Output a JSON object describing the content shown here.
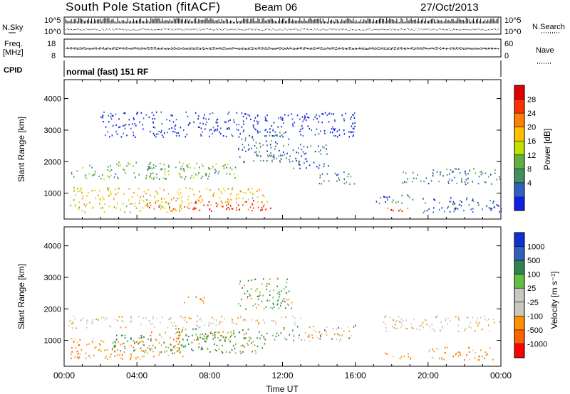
{
  "header": {
    "station": "South Pole Station (fitACF)",
    "beam": "Beam 06",
    "date": "27/Oct/2013"
  },
  "top_panels": {
    "nsky_label": "N.Sky",
    "nsearch_label": "N.Search",
    "noise_ticks": [
      "10^5",
      "10^0"
    ],
    "freq_label_line1": "Freq.",
    "freq_label_line2": "[MHz]",
    "freq_ticks": [
      "18",
      "8"
    ],
    "nave_label": "Nave",
    "nave_ticks": [
      "60",
      "0"
    ],
    "cpid_label": "CPID",
    "cpid_text": "normal (fast) 151 RF"
  },
  "chart_data": [
    {
      "type": "heatmap",
      "name": "power-panel",
      "xlabel": "Time UT",
      "ylabel": "Slant Range [km]",
      "xlim": [
        0,
        24
      ],
      "ylim": [
        180,
        4600
      ],
      "yticks": [
        "1000",
        "2000",
        "3000",
        "4000"
      ],
      "colorbar": {
        "label": "Power [dB]",
        "ticks": [
          "4",
          "8",
          "12",
          "16",
          "20",
          "24",
          "28"
        ],
        "colors": [
          "#1020e0",
          "#3060c0",
          "#409060",
          "#60b040",
          "#c0e000",
          "#ffc000",
          "#ff8000",
          "#ff3000",
          "#e00000"
        ]
      },
      "regions": [
        {
          "t0": 0.3,
          "t1": 9.5,
          "r0": 1450,
          "r1": 1900,
          "level": 0.35
        },
        {
          "t0": 2.5,
          "t1": 9.0,
          "r0": 1800,
          "r1": 2000,
          "level": 0.45
        },
        {
          "t0": 0.5,
          "t1": 11.0,
          "r0": 700,
          "r1": 1200,
          "level": 0.6
        },
        {
          "t0": 4.5,
          "t1": 11.2,
          "r0": 500,
          "r1": 800,
          "level": 0.8
        },
        {
          "t0": 7.0,
          "t1": 11.5,
          "r0": 450,
          "r1": 650,
          "level": 0.95
        },
        {
          "t0": 0.3,
          "t1": 6.5,
          "r0": 400,
          "r1": 700,
          "level": 0.55
        },
        {
          "t0": 9.5,
          "t1": 12.5,
          "r0": 2000,
          "r1": 3000,
          "level": 0.2
        },
        {
          "t0": 12.5,
          "t1": 14.5,
          "r0": 1800,
          "r1": 2600,
          "level": 0.15
        },
        {
          "t0": 14.0,
          "t1": 16.0,
          "r0": 1300,
          "r1": 1700,
          "level": 0.2
        },
        {
          "t0": 17.5,
          "t1": 19.0,
          "r0": 420,
          "r1": 600,
          "level": 0.85
        },
        {
          "t0": 17.0,
          "t1": 19.2,
          "r0": 700,
          "r1": 1000,
          "level": 0.2
        },
        {
          "t0": 18.5,
          "t1": 24.0,
          "r0": 1300,
          "r1": 1800,
          "level": 0.25
        },
        {
          "t0": 19.5,
          "t1": 24.0,
          "r0": 400,
          "r1": 900,
          "level": 0.15
        },
        {
          "t0": 2.0,
          "t1": 16.0,
          "r0": 2800,
          "r1": 3600,
          "level": 0.05
        }
      ]
    },
    {
      "type": "heatmap",
      "name": "velocity-panel",
      "xlabel": "Time UT",
      "ylabel": "Slant Range [km]",
      "xlim": [
        0,
        24
      ],
      "ylim": [
        180,
        4600
      ],
      "yticks": [
        "1000",
        "2000",
        "3000",
        "4000"
      ],
      "xticks": [
        "00:00",
        "04:00",
        "08:00",
        "12:00",
        "16:00",
        "20:00",
        "00:00"
      ],
      "colorbar": {
        "label": "Velocity [m s⁻¹]",
        "ticks": [
          "1000",
          "500",
          "100",
          "25",
          "-25",
          "-100",
          "-500",
          "-1000"
        ],
        "colors": [
          "#1030d0",
          "#3060c0",
          "#308050",
          "#60c040",
          "#c8c8c0",
          "#c8c8c0",
          "#ff9000",
          "#ff6000",
          "#ff0000"
        ]
      },
      "regions": [
        {
          "t0": 0.2,
          "t1": 8.0,
          "r0": 1400,
          "r1": 1800,
          "kind": "gray"
        },
        {
          "t0": 8.0,
          "t1": 13.0,
          "r0": 1500,
          "r1": 1800,
          "kind": "gray"
        },
        {
          "t0": 17.5,
          "t1": 24.0,
          "r0": 1300,
          "r1": 1800,
          "kind": "gray"
        },
        {
          "t0": 0.3,
          "t1": 4.5,
          "r0": 400,
          "r1": 1100,
          "kind": "orange"
        },
        {
          "t0": 4.5,
          "t1": 6.5,
          "r0": 500,
          "r1": 1300,
          "kind": "orange"
        },
        {
          "t0": 2.5,
          "t1": 11.0,
          "r0": 600,
          "r1": 1200,
          "kind": "green"
        },
        {
          "t0": 6.0,
          "t1": 12.0,
          "r0": 1000,
          "r1": 1400,
          "kind": "green"
        },
        {
          "t0": 9.5,
          "t1": 12.5,
          "r0": 2000,
          "r1": 3000,
          "kind": "green"
        },
        {
          "t0": 6.5,
          "t1": 8.0,
          "r0": 2200,
          "r1": 2400,
          "kind": "orange"
        },
        {
          "t0": 17.5,
          "t1": 19.2,
          "r0": 420,
          "r1": 620,
          "kind": "orange"
        },
        {
          "t0": 20.0,
          "t1": 24.0,
          "r0": 400,
          "r1": 800,
          "kind": "orange"
        },
        {
          "t0": 12.0,
          "t1": 16.0,
          "r0": 1000,
          "r1": 1500,
          "kind": "mixed"
        }
      ]
    }
  ]
}
